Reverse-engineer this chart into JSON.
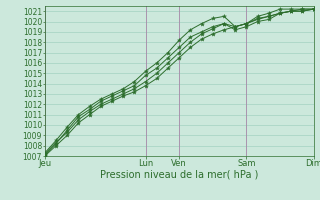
{
  "background_color": "#cce8dc",
  "grid_color": "#99ccbb",
  "line_color": "#2d6e2d",
  "marker_color": "#2d6e2d",
  "vline_color": "#aa88aa",
  "xlabel": "Pression niveau de la mer( hPa )",
  "xlabel_fontsize": 7,
  "ylabel_fontsize": 5.5,
  "tick_fontsize": 6,
  "ylim": [
    1007,
    1021.5
  ],
  "yticks": [
    1007,
    1008,
    1009,
    1010,
    1011,
    1012,
    1013,
    1014,
    1015,
    1016,
    1017,
    1018,
    1019,
    1020,
    1021
  ],
  "day_labels": [
    "Jeu",
    "Lun",
    "Ven",
    "Sam",
    "Dim"
  ],
  "day_positions": [
    0,
    9,
    12,
    18,
    24
  ],
  "xlim": [
    0,
    24
  ],
  "series": [
    [
      1007.0,
      1008.0,
      1009.0,
      1010.2,
      1011.0,
      1011.8,
      1012.3,
      1012.8,
      1013.2,
      1013.8,
      1014.5,
      1015.5,
      1016.5,
      1017.5,
      1018.3,
      1018.8,
      1019.2,
      1019.5,
      1019.8,
      1020.2,
      1020.5,
      1020.8,
      1021.0,
      1021.0,
      1021.2
    ],
    [
      1007.2,
      1008.3,
      1009.3,
      1010.5,
      1011.3,
      1012.0,
      1012.5,
      1013.0,
      1013.5,
      1014.2,
      1015.0,
      1016.0,
      1017.0,
      1018.0,
      1018.8,
      1019.3,
      1019.8,
      1019.5,
      1019.8,
      1020.3,
      1020.5,
      1020.8,
      1021.0,
      1021.2,
      1021.2
    ],
    [
      1007.1,
      1008.2,
      1009.5,
      1010.8,
      1011.5,
      1012.3,
      1012.8,
      1013.3,
      1013.8,
      1014.8,
      1015.5,
      1016.5,
      1017.5,
      1018.5,
      1019.0,
      1019.5,
      1019.8,
      1019.2,
      1019.5,
      1020.0,
      1020.2,
      1020.8,
      1021.0,
      1021.0,
      1021.2
    ],
    [
      1007.3,
      1008.5,
      1009.8,
      1011.0,
      1011.8,
      1012.5,
      1013.0,
      1013.5,
      1014.2,
      1015.2,
      1016.0,
      1017.0,
      1018.2,
      1019.2,
      1019.8,
      1020.3,
      1020.5,
      1019.5,
      1019.8,
      1020.5,
      1020.8,
      1021.2,
      1021.2,
      1021.2,
      1021.2
    ]
  ]
}
